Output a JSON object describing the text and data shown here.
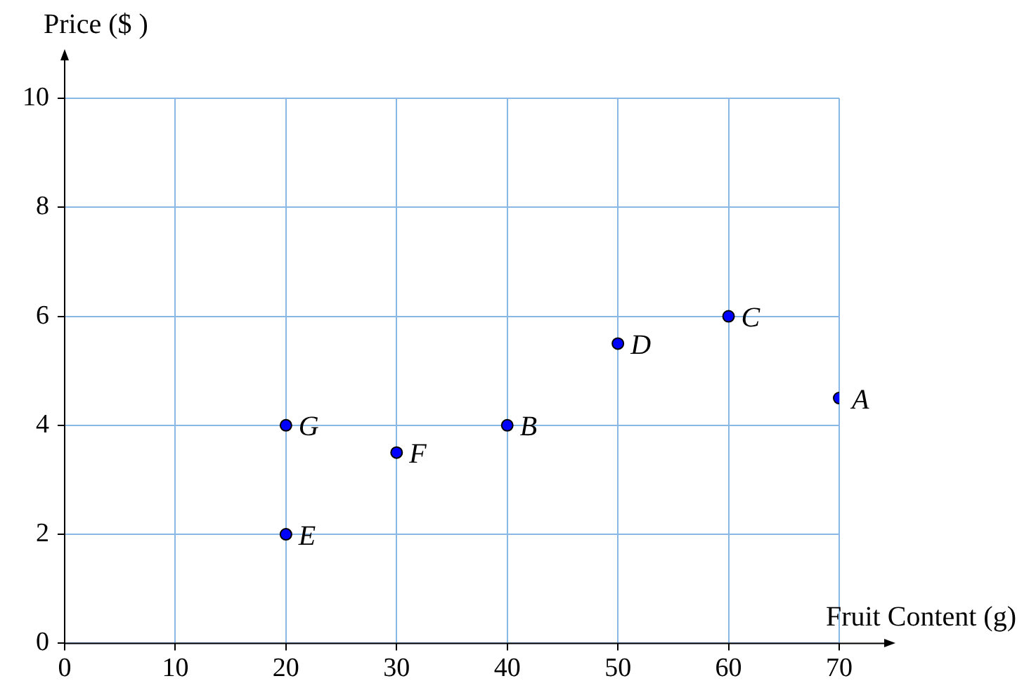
{
  "chart_data": {
    "type": "scatter",
    "xlabel": "Fruit Content (g)",
    "ylabel": "Price ($ )",
    "series": [
      {
        "color": "#0000ff",
        "x": [
          70,
          40,
          60,
          50,
          20,
          30,
          20
        ],
        "values": [
          4.5,
          4,
          6,
          5.5,
          2,
          3.5,
          4
        ]
      }
    ],
    "annotations": [
      {
        "text": "A",
        "x": 70,
        "y": 4.5
      },
      {
        "text": "B",
        "x": 40,
        "y": 4
      },
      {
        "text": "C",
        "x": 60,
        "y": 6
      },
      {
        "text": "D",
        "x": 50,
        "y": 5.5
      },
      {
        "text": "E",
        "x": 20,
        "y": 2
      },
      {
        "text": "F",
        "x": 30,
        "y": 3.5
      },
      {
        "text": "G",
        "x": 20,
        "y": 4
      }
    ],
    "xlim": [
      0,
      70
    ],
    "ylim": [
      0,
      10
    ],
    "xticks": [
      0,
      10,
      20,
      30,
      40,
      50,
      60,
      70
    ],
    "yticks": [
      0,
      2,
      4,
      6,
      8,
      10
    ],
    "grid": true,
    "marker": "circle",
    "legend": false
  }
}
